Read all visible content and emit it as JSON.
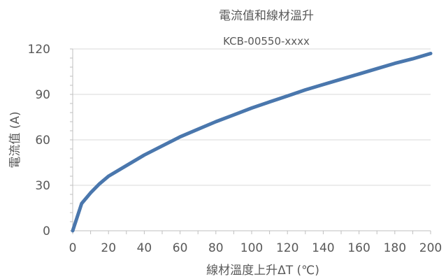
{
  "chart_data": {
    "type": "line",
    "title": "電流值和線材溫升",
    "subtitle": "KCB-00550-xxxx",
    "xlabel": "線材溫度上升ΔT (℃)",
    "ylabel": "電流值 (A)",
    "xlim": [
      0,
      200
    ],
    "ylim": [
      0,
      120
    ],
    "xticks": [
      0,
      20,
      40,
      60,
      80,
      100,
      120,
      140,
      160,
      180,
      200
    ],
    "yticks": [
      0,
      30,
      60,
      90,
      120
    ],
    "grid": true,
    "legend": "none",
    "series": [
      {
        "color": "#4a77ad",
        "x": [
          0,
          5,
          10,
          15,
          20,
          30,
          40,
          50,
          60,
          70,
          80,
          90,
          100,
          110,
          120,
          130,
          140,
          150,
          160,
          170,
          180,
          190,
          200
        ],
        "y": [
          0,
          18,
          25,
          31,
          36,
          43,
          50,
          56,
          62,
          67,
          72,
          76.5,
          81,
          85,
          89,
          93,
          96.5,
          100,
          103.5,
          107,
          110.5,
          113.5,
          117
        ]
      }
    ],
    "colors": {
      "text": "#595959",
      "grid": "#d9d9d9",
      "axis": "#bfbfbf"
    }
  }
}
